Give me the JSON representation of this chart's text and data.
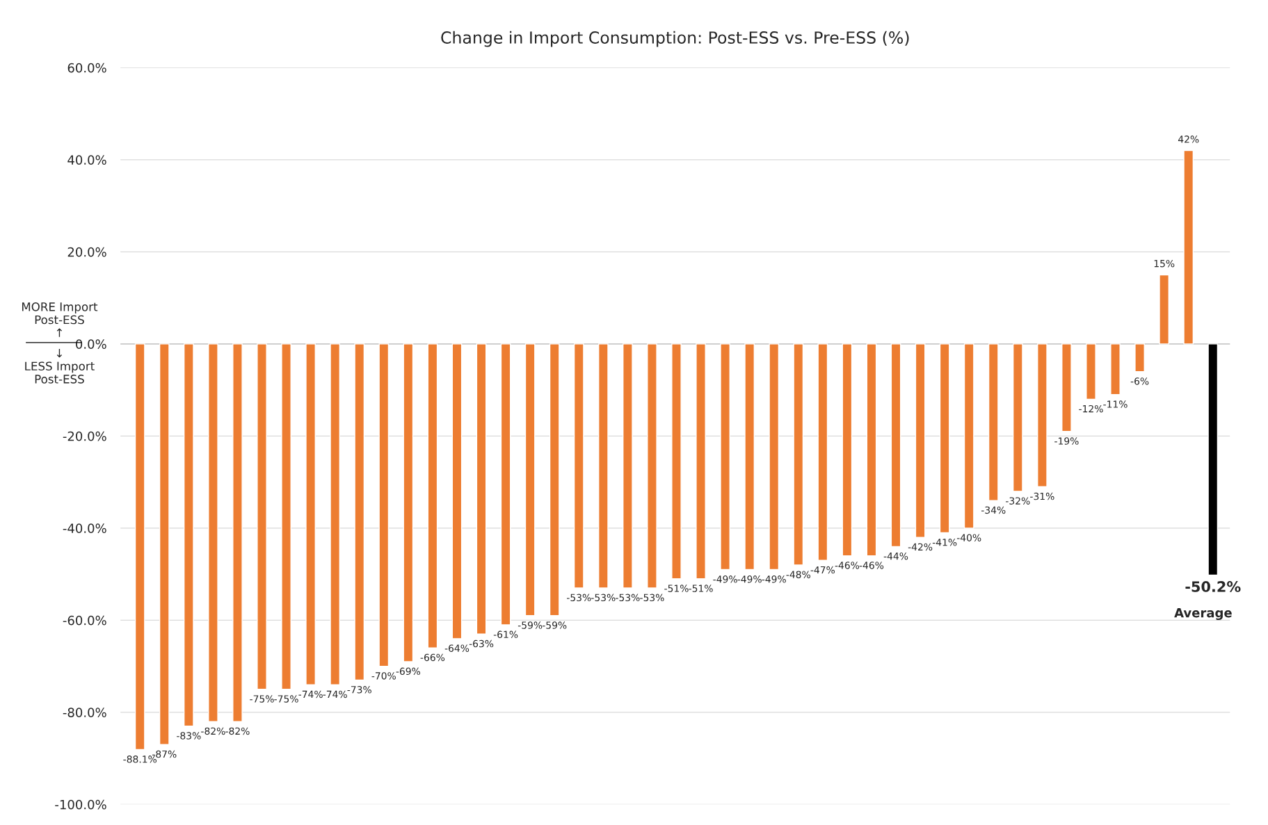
{
  "chart_data": {
    "type": "bar",
    "title": "Change in Import Consumption: Post-ESS vs. Pre-ESS (%)",
    "categories": [
      null,
      null,
      null,
      null,
      null,
      null,
      null,
      null,
      null,
      null,
      null,
      null,
      null,
      null,
      null,
      null,
      null,
      null,
      null,
      null,
      null,
      null,
      null,
      null,
      null,
      null,
      null,
      null,
      null,
      null,
      null,
      null,
      null,
      null,
      null,
      null,
      null,
      null,
      null,
      null,
      null,
      null,
      null,
      null,
      null
    ],
    "values": [
      -88.1,
      -87,
      -83,
      -82,
      -82,
      -75,
      -75,
      -74,
      -74,
      -73,
      -70,
      -69,
      -66,
      -64,
      -63,
      -61,
      -59,
      -59,
      -53,
      -53,
      -53,
      -53,
      -51,
      -51,
      -49,
      -49,
      -49,
      -48,
      -47,
      -46,
      -46,
      -44,
      -42,
      -41,
      -40,
      -34,
      -32,
      -31,
      -19,
      -12,
      -11,
      -6,
      15,
      42,
      -50.2
    ],
    "value_labels": [
      "-88.1%",
      "-87%",
      "-83%",
      "-82%",
      "-82%",
      "-75%",
      "-75%",
      "-74%",
      "-74%",
      "-73%",
      "-70%",
      "-69%",
      "-66%",
      "-64%",
      "-63%",
      "-61%",
      "-59%",
      "-59%",
      "-53%",
      "-53%",
      "-53%",
      "-53%",
      "-51%",
      "-51%",
      "-49%",
      "-49%",
      "-49%",
      "-48%",
      "-47%",
      "-46%",
      "-46%",
      "-44%",
      "-42%",
      "-41%",
      "-40%",
      "-34%",
      "-32%",
      "-31%",
      "-19%",
      "-12%",
      "-11%",
      "-6%",
      "15%",
      "42%",
      "-50.2%"
    ],
    "colors": [
      "#ed7d31",
      "#ed7d31",
      "#ed7d31",
      "#ed7d31",
      "#ed7d31",
      "#ed7d31",
      "#ed7d31",
      "#ed7d31",
      "#ed7d31",
      "#ed7d31",
      "#ed7d31",
      "#ed7d31",
      "#ed7d31",
      "#ed7d31",
      "#ed7d31",
      "#ed7d31",
      "#ed7d31",
      "#ed7d31",
      "#ed7d31",
      "#ed7d31",
      "#ed7d31",
      "#ed7d31",
      "#ed7d31",
      "#ed7d31",
      "#ed7d31",
      "#ed7d31",
      "#ed7d31",
      "#ed7d31",
      "#ed7d31",
      "#ed7d31",
      "#ed7d31",
      "#ed7d31",
      "#ed7d31",
      "#ed7d31",
      "#ed7d31",
      "#ed7d31",
      "#ed7d31",
      "#ed7d31",
      "#ed7d31",
      "#ed7d31",
      "#ed7d31",
      "#ed7d31",
      "#ed7d31",
      "#ed7d31",
      "#000000"
    ],
    "ylim": [
      -100,
      60
    ],
    "yticks": [
      {
        "value": -100,
        "label": "-100.0%"
      },
      {
        "value": -80,
        "label": "-80.0%"
      },
      {
        "value": -60,
        "label": "-60.0%"
      },
      {
        "value": -40,
        "label": "-40.0%"
      },
      {
        "value": -20,
        "label": "-20.0%"
      },
      {
        "value": 0,
        "label": "0.0%"
      },
      {
        "value": 20,
        "label": "20.0%"
      },
      {
        "value": 40,
        "label": "40.0%"
      },
      {
        "value": 60,
        "label": "60.0%"
      }
    ],
    "grid": "y",
    "annotations": [
      "MORE Import\nPost-ESS\n↑",
      "↓\nLESS Import\nPost-ESS",
      "Average"
    ]
  }
}
